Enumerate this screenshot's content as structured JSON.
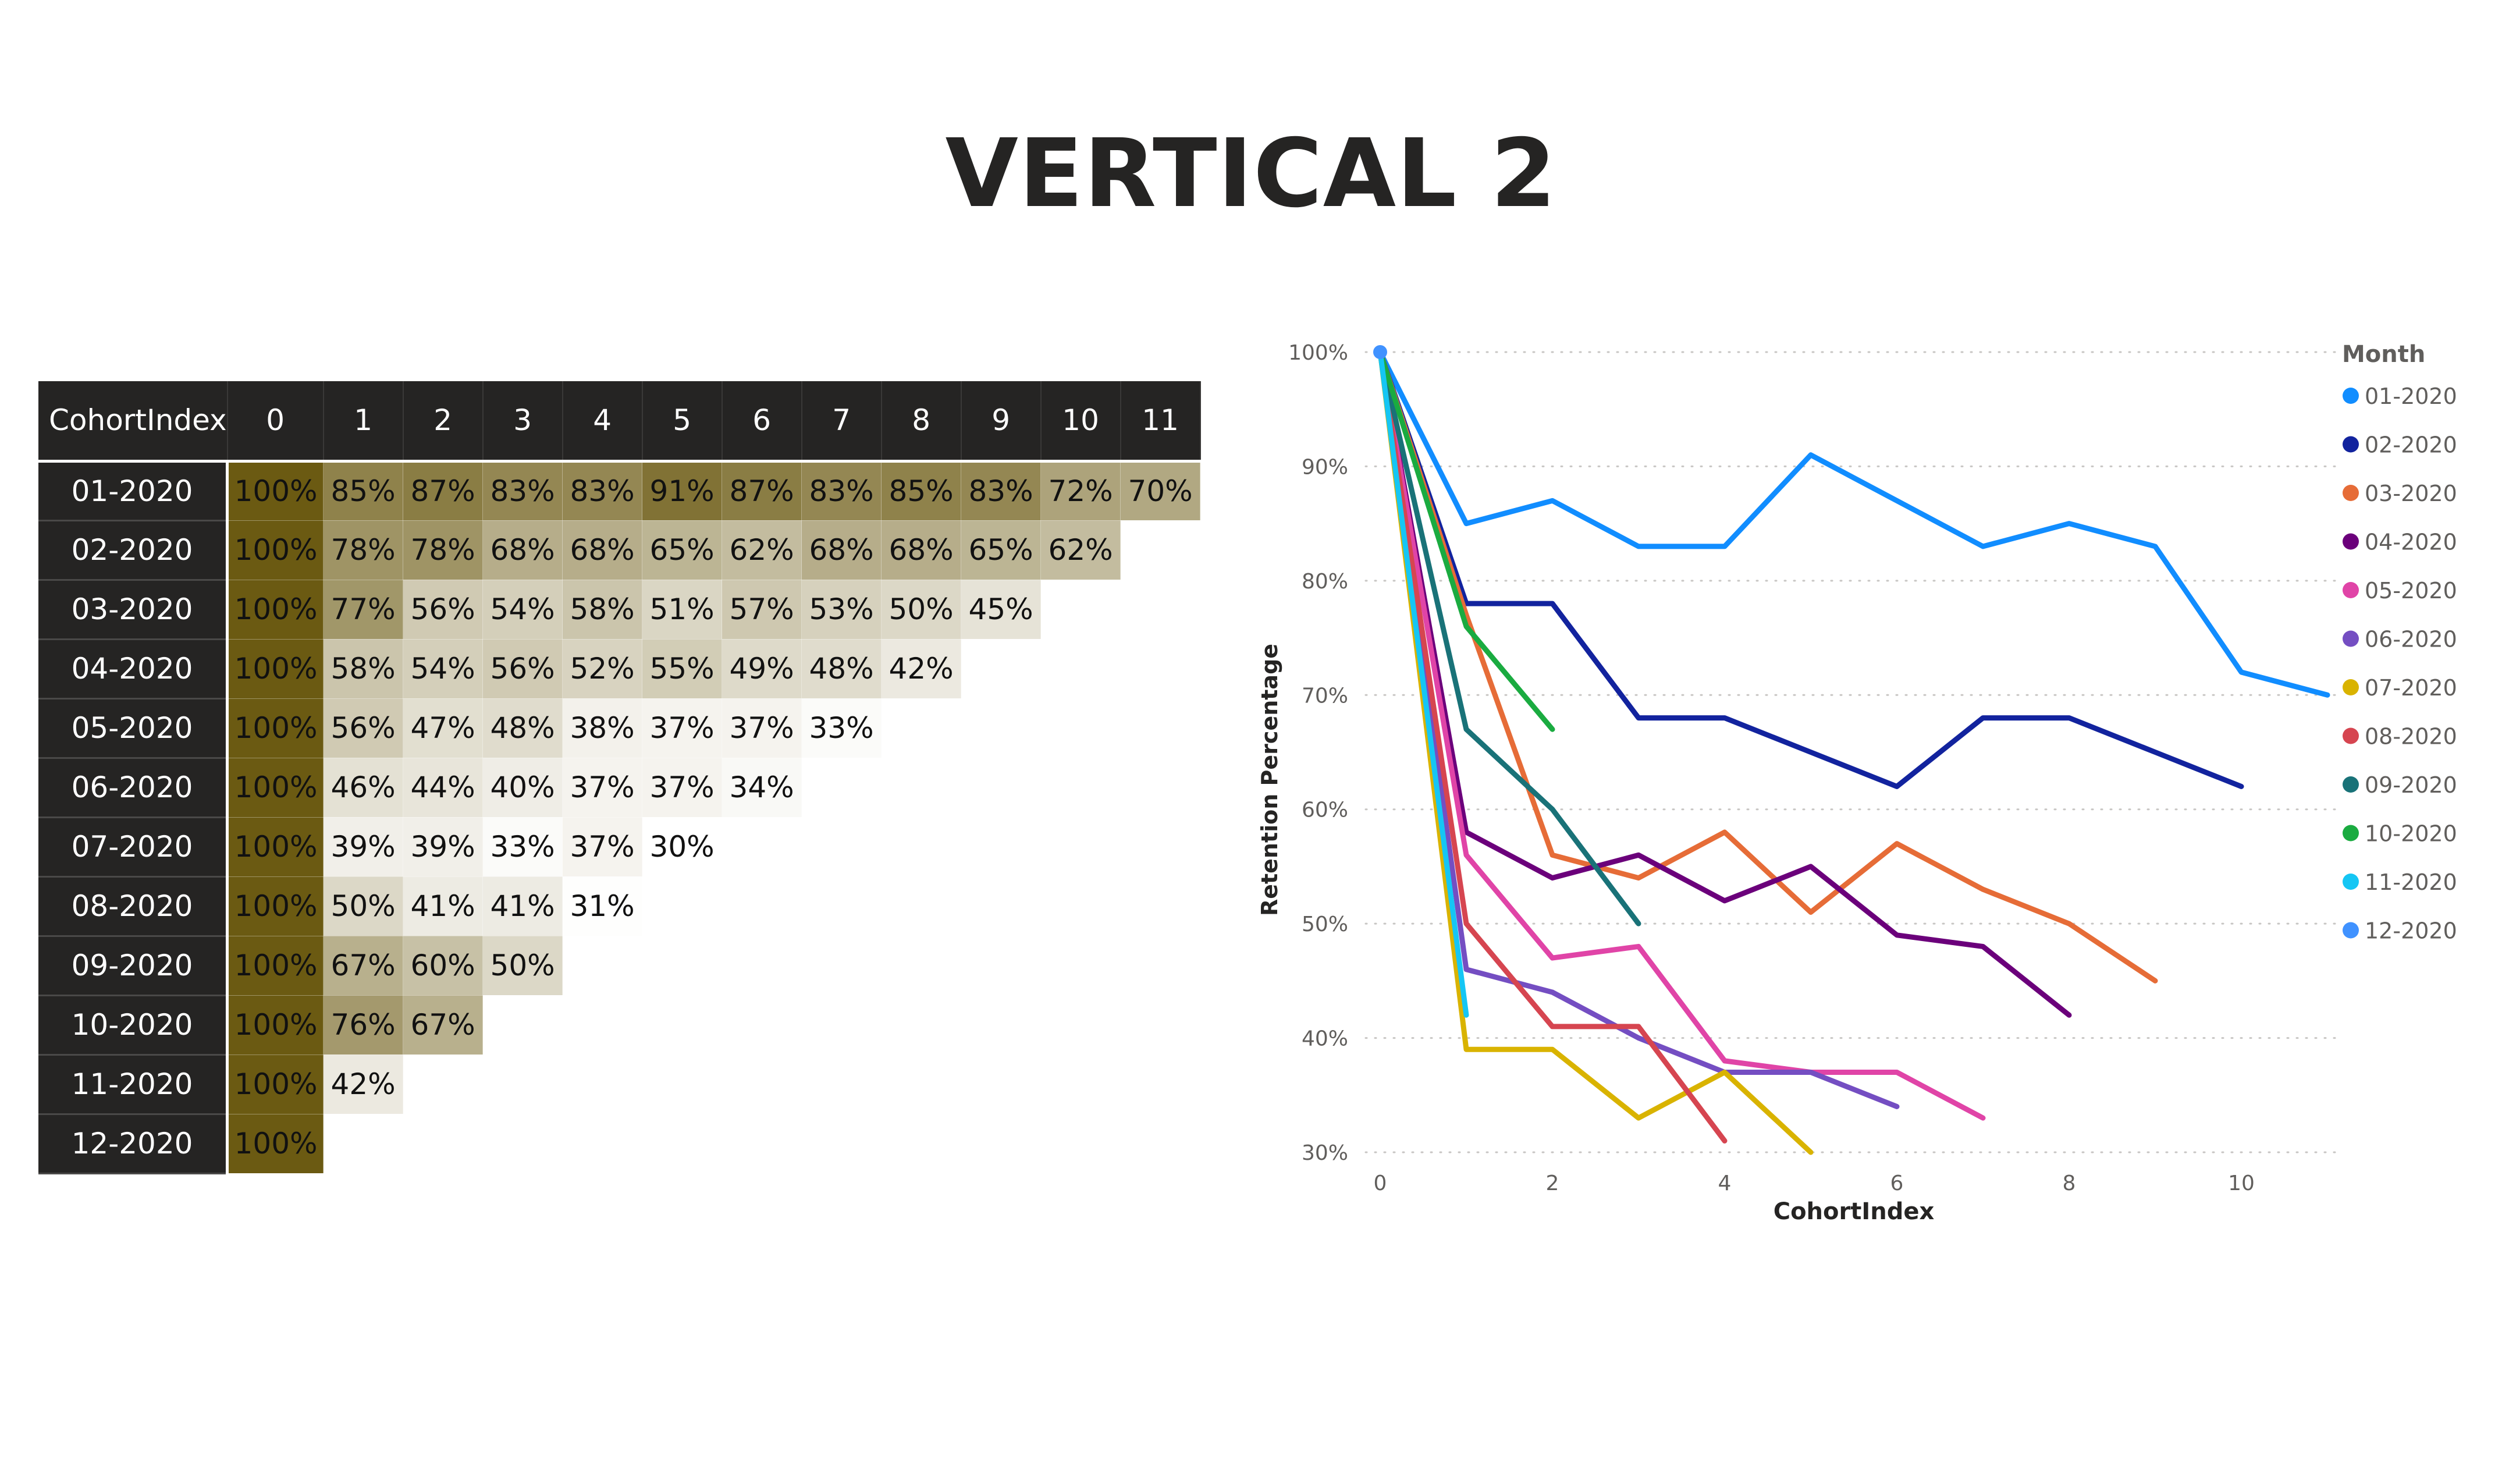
{
  "page": {
    "title": "VERTICAL 2"
  },
  "matrix": {
    "corner_label": "CohortIndex",
    "columns": [
      "0",
      "1",
      "2",
      "3",
      "4",
      "5",
      "6",
      "7",
      "8",
      "9",
      "10",
      "11"
    ],
    "rows": [
      {
        "label": "01-2020",
        "values": [
          "100%",
          "85%",
          "87%",
          "83%",
          "83%",
          "91%",
          "87%",
          "83%",
          "85%",
          "83%",
          "72%",
          "70%"
        ]
      },
      {
        "label": "02-2020",
        "values": [
          "100%",
          "78%",
          "78%",
          "68%",
          "68%",
          "65%",
          "62%",
          "68%",
          "68%",
          "65%",
          "62%"
        ]
      },
      {
        "label": "03-2020",
        "values": [
          "100%",
          "77%",
          "56%",
          "54%",
          "58%",
          "51%",
          "57%",
          "53%",
          "50%",
          "45%"
        ]
      },
      {
        "label": "04-2020",
        "values": [
          "100%",
          "58%",
          "54%",
          "56%",
          "52%",
          "55%",
          "49%",
          "48%",
          "42%"
        ]
      },
      {
        "label": "05-2020",
        "values": [
          "100%",
          "56%",
          "47%",
          "48%",
          "38%",
          "37%",
          "37%",
          "33%"
        ]
      },
      {
        "label": "06-2020",
        "values": [
          "100%",
          "46%",
          "44%",
          "40%",
          "37%",
          "37%",
          "34%"
        ]
      },
      {
        "label": "07-2020",
        "values": [
          "100%",
          "39%",
          "39%",
          "33%",
          "37%",
          "30%"
        ]
      },
      {
        "label": "08-2020",
        "values": [
          "100%",
          "50%",
          "41%",
          "41%",
          "31%"
        ]
      },
      {
        "label": "09-2020",
        "values": [
          "100%",
          "67%",
          "60%",
          "50%"
        ]
      },
      {
        "label": "10-2020",
        "values": [
          "100%",
          "76%",
          "67%"
        ]
      },
      {
        "label": "11-2020",
        "values": [
          "100%",
          "42%"
        ]
      },
      {
        "label": "12-2020",
        "values": [
          "100%"
        ]
      }
    ],
    "colors": {
      "header_bg": "#252423",
      "max_color": "#6b5a12",
      "min_color": "#ffffff"
    }
  },
  "chart_data": {
    "type": "line",
    "xlabel": "CohortIndex",
    "ylabel": "Retention Percentage",
    "xlim": [
      0,
      11
    ],
    "ylim": [
      30,
      100
    ],
    "x_ticks": [
      "0",
      "2",
      "4",
      "6",
      "8",
      "10"
    ],
    "y_ticks": [
      "30%",
      "40%",
      "50%",
      "60%",
      "70%",
      "80%",
      "90%",
      "100%"
    ],
    "grid": "horizontal-dotted",
    "legend": {
      "title": "Month",
      "placement": "right"
    },
    "series": [
      {
        "name": "01-2020",
        "color": "#118DFF",
        "x": [
          0,
          1,
          2,
          3,
          4,
          5,
          6,
          7,
          8,
          9,
          10,
          11
        ],
        "values": [
          100,
          85,
          87,
          83,
          83,
          91,
          87,
          83,
          85,
          83,
          72,
          70
        ]
      },
      {
        "name": "02-2020",
        "color": "#12239E",
        "x": [
          0,
          1,
          2,
          3,
          4,
          5,
          6,
          7,
          8,
          9,
          10
        ],
        "values": [
          100,
          78,
          78,
          68,
          68,
          65,
          62,
          68,
          68,
          65,
          62
        ]
      },
      {
        "name": "03-2020",
        "color": "#E66C37",
        "x": [
          0,
          1,
          2,
          3,
          4,
          5,
          6,
          7,
          8,
          9
        ],
        "values": [
          100,
          77,
          56,
          54,
          58,
          51,
          57,
          53,
          50,
          45
        ]
      },
      {
        "name": "04-2020",
        "color": "#6B007B",
        "x": [
          0,
          1,
          2,
          3,
          4,
          5,
          6,
          7,
          8
        ],
        "values": [
          100,
          58,
          54,
          56,
          52,
          55,
          49,
          48,
          42
        ]
      },
      {
        "name": "05-2020",
        "color": "#E044A7",
        "x": [
          0,
          1,
          2,
          3,
          4,
          5,
          6,
          7
        ],
        "values": [
          100,
          56,
          47,
          48,
          38,
          37,
          37,
          33
        ]
      },
      {
        "name": "06-2020",
        "color": "#744EC2",
        "x": [
          0,
          1,
          2,
          3,
          4,
          5,
          6
        ],
        "values": [
          100,
          46,
          44,
          40,
          37,
          37,
          34
        ]
      },
      {
        "name": "07-2020",
        "color": "#D9B300",
        "x": [
          0,
          1,
          2,
          3,
          4,
          5
        ],
        "values": [
          100,
          39,
          39,
          33,
          37,
          30
        ]
      },
      {
        "name": "08-2020",
        "color": "#D64550",
        "x": [
          0,
          1,
          2,
          3,
          4
        ],
        "values": [
          100,
          50,
          41,
          41,
          31
        ]
      },
      {
        "name": "09-2020",
        "color": "#197278",
        "x": [
          0,
          1,
          2,
          3
        ],
        "values": [
          100,
          67,
          60,
          50
        ]
      },
      {
        "name": "10-2020",
        "color": "#1AAB40",
        "x": [
          0,
          1,
          2
        ],
        "values": [
          100,
          76,
          67
        ]
      },
      {
        "name": "11-2020",
        "color": "#15C6F4",
        "x": [
          0,
          1
        ],
        "values": [
          100,
          42
        ]
      },
      {
        "name": "12-2020",
        "color": "#4092FF",
        "x": [
          0
        ],
        "values": [
          100
        ]
      }
    ]
  }
}
